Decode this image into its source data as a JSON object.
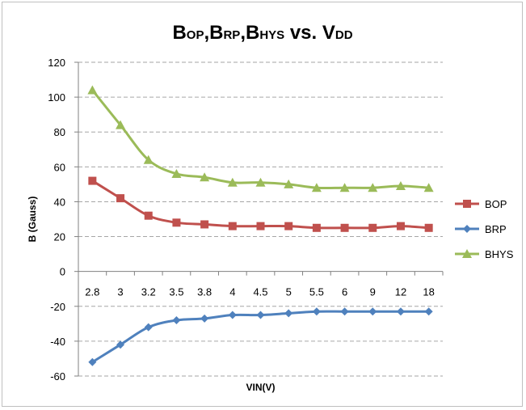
{
  "chart_data": {
    "type": "line",
    "title_parts": [
      {
        "text": "B",
        "sub": false
      },
      {
        "text": "OP",
        "sub": true
      },
      {
        "text": ",B",
        "sub": false
      },
      {
        "text": "RP",
        "sub": true
      },
      {
        "text": ",B",
        "sub": false
      },
      {
        "text": "HYS",
        "sub": true
      },
      {
        "text": " vs. V",
        "sub": false
      },
      {
        "text": "DD",
        "sub": true
      }
    ],
    "xlabel": "VIN(V)",
    "ylabel": "B (Gauss)",
    "categories": [
      "2.8",
      "3",
      "3.2",
      "3.5",
      "3.8",
      "4",
      "4.5",
      "5",
      "5.5",
      "6",
      "9",
      "12",
      "18"
    ],
    "ylim": [
      -60,
      120
    ],
    "yticks": [
      -60,
      -40,
      -20,
      0,
      20,
      40,
      60,
      80,
      100,
      120
    ],
    "grid": "horizontal-dashed",
    "legend_position": "right",
    "series": [
      {
        "name": "BOP",
        "color": "#c0504d",
        "marker": "square",
        "values": [
          52,
          42,
          32,
          28,
          27,
          26,
          26,
          26,
          25,
          25,
          25,
          26,
          25
        ]
      },
      {
        "name": "BRP",
        "color": "#4f81bd",
        "marker": "diamond",
        "values": [
          -52,
          -42,
          -32,
          -28,
          -27,
          -25,
          -25,
          -24,
          -23,
          -23,
          -23,
          -23,
          -23
        ]
      },
      {
        "name": "BHYS",
        "color": "#9bbb59",
        "marker": "triangle",
        "values": [
          104,
          84,
          64,
          56,
          54,
          51,
          51,
          50,
          48,
          48,
          48,
          49,
          48
        ]
      }
    ]
  }
}
